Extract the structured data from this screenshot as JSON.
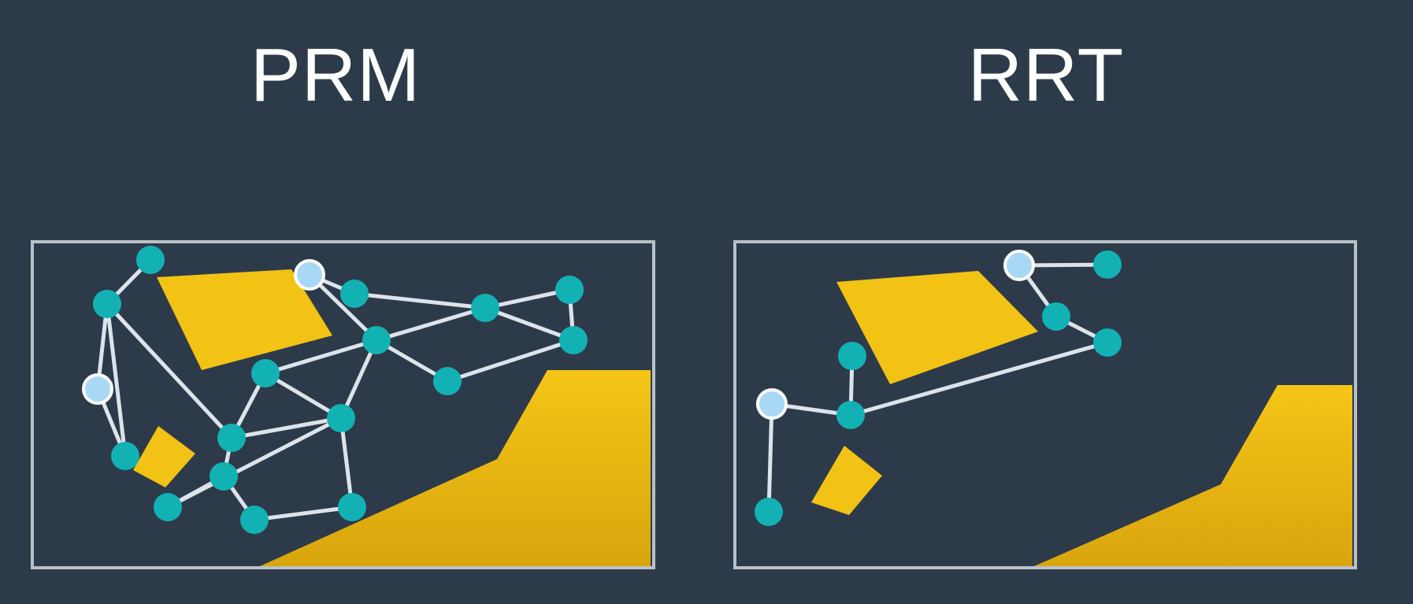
{
  "panels": [
    {
      "id": "prm",
      "title": "PRM"
    },
    {
      "id": "rrt",
      "title": "RRT"
    }
  ],
  "colors": {
    "background": "#2d3a4a",
    "frame": "#b9c0c8",
    "obstacle": "#f2c214",
    "obstacle_dark": "#d6a410",
    "node": "#12b2b4",
    "endpoint_node": "#a9d8f5",
    "edge": "#dde3ea",
    "title": "#ffffff"
  }
}
